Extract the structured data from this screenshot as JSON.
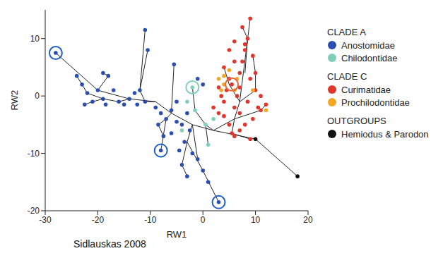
{
  "chart_data": {
    "type": "scatter",
    "caption": "Sidlauskas 2008",
    "x_label": "RW1",
    "y_label": "RW2",
    "xlim": [
      -30,
      20
    ],
    "xticks": [
      -30,
      -20,
      -10,
      0,
      10,
      20
    ],
    "ylim": [
      -20,
      15
    ],
    "yticks": [
      -20,
      -10,
      0,
      10
    ],
    "grid": false,
    "legend": "right",
    "series": [
      {
        "name": "Anostomidae",
        "group": "CLADE A",
        "color": "#2b4fb0",
        "points": [
          [
            -28,
            7.5
          ],
          [
            -24,
            3.5
          ],
          [
            -23,
            2
          ],
          [
            -22,
            0.5
          ],
          [
            -21,
            -1
          ],
          [
            -22.5,
            -1.5
          ],
          [
            -20,
            1
          ],
          [
            -19,
            -0.5
          ],
          [
            -18.5,
            -1.5
          ],
          [
            -18,
            3.5
          ],
          [
            -19,
            4
          ],
          [
            -17,
            1
          ],
          [
            -16,
            -1
          ],
          [
            -15,
            -1.5
          ],
          [
            -14,
            -0.5
          ],
          [
            -13,
            0.5
          ],
          [
            -12,
            1
          ],
          [
            -12.5,
            -1.5
          ],
          [
            -11,
            -1
          ],
          [
            -11,
            11.5
          ],
          [
            -10.5,
            8
          ],
          [
            -9,
            -2
          ],
          [
            -8,
            -3
          ],
          [
            -7,
            -4
          ],
          [
            -8.5,
            -5
          ],
          [
            -7.5,
            -7
          ],
          [
            -8,
            -9.5
          ],
          [
            -6,
            -2.5
          ],
          [
            -5,
            -4.5
          ],
          [
            -4,
            -5
          ],
          [
            -5.5,
            5.5
          ],
          [
            -5,
            -1
          ],
          [
            -3,
            -3
          ],
          [
            -2.5,
            -6
          ],
          [
            -3.5,
            -8
          ],
          [
            -4,
            -12
          ],
          [
            -3,
            -14
          ],
          [
            -2,
            -10
          ],
          [
            -1,
            -11
          ],
          [
            0,
            -13
          ],
          [
            1,
            -15
          ],
          [
            3,
            -18.5
          ],
          [
            -1,
            3
          ],
          [
            0,
            2
          ],
          [
            -6,
            -6.5
          ],
          [
            -4.5,
            -9.5
          ]
        ]
      },
      {
        "name": "Chilodontidae",
        "group": "CLADE A",
        "color": "#7fd0b8",
        "points": [
          [
            -2,
            1.5
          ],
          [
            -3,
            -1
          ],
          [
            -4,
            -6
          ],
          [
            0.5,
            -5
          ],
          [
            1,
            -8.5
          ],
          [
            2,
            -4
          ],
          [
            -1.5,
            -2.5
          ]
        ]
      },
      {
        "name": "Curimatidae",
        "group": "CLADE C",
        "color": "#e0362c",
        "points": [
          [
            3,
            -3
          ],
          [
            4,
            -1
          ],
          [
            4.5,
            1
          ],
          [
            5,
            3
          ],
          [
            5.5,
            2
          ],
          [
            6,
            -2
          ],
          [
            6.5,
            0
          ],
          [
            7,
            4
          ],
          [
            7.5,
            6
          ],
          [
            8,
            8
          ],
          [
            8.5,
            10
          ],
          [
            9,
            13.5
          ],
          [
            7.5,
            12
          ],
          [
            8,
            9
          ],
          [
            9,
            3
          ],
          [
            10,
            1
          ],
          [
            11,
            0
          ],
          [
            10.5,
            -2
          ],
          [
            9.5,
            -4
          ],
          [
            8,
            -5
          ],
          [
            7,
            -6
          ],
          [
            6,
            -7
          ],
          [
            5,
            -5
          ],
          [
            4,
            -3.5
          ],
          [
            3.5,
            0
          ],
          [
            6,
            6
          ],
          [
            5,
            8
          ],
          [
            8.5,
            -1
          ],
          [
            10,
            4
          ],
          [
            9.5,
            7
          ],
          [
            7,
            1.5
          ],
          [
            6,
            9.5
          ],
          [
            4,
            5
          ],
          [
            2,
            -2
          ],
          [
            3,
            1.5
          ],
          [
            5.5,
            -6.5
          ],
          [
            7,
            -3
          ],
          [
            9,
            -7.5
          ],
          [
            11,
            -2.5
          ],
          [
            12,
            -1.5
          ]
        ]
      },
      {
        "name": "Prochilodontidae",
        "group": "CLADE C",
        "color": "#f5a623",
        "points": [
          [
            4,
            3.5
          ],
          [
            5,
            4.5
          ],
          [
            3.5,
            1
          ],
          [
            6,
            1
          ],
          [
            12,
            -2.5
          ],
          [
            6.5,
            3
          ],
          [
            9.5,
            1
          ],
          [
            4,
            2
          ],
          [
            3,
            3
          ]
        ]
      },
      {
        "name": "Hemiodus & Parodon",
        "group": "OUTGROUPS",
        "color": "#111111",
        "points": [
          [
            18,
            -14
          ],
          [
            10,
            -7.5
          ]
        ]
      }
    ],
    "branches": [
      [
        [
          18,
          -14
        ],
        [
          10,
          -7.5
        ],
        [
          2,
          -6
        ],
        [
          -2,
          -5
        ],
        [
          -6,
          -3
        ],
        [
          -9,
          -1
        ],
        [
          -14,
          -0.5
        ],
        [
          -20,
          1
        ],
        [
          -28,
          7.5
        ]
      ],
      [
        [
          -14,
          -0.5
        ],
        [
          -16,
          -1
        ],
        [
          -19,
          -0.5
        ],
        [
          -22,
          0.5
        ],
        [
          -24,
          3.5
        ]
      ],
      [
        [
          -19,
          -0.5
        ],
        [
          -21,
          -1
        ],
        [
          -22.5,
          -1.5
        ]
      ],
      [
        [
          -20,
          1
        ],
        [
          -18,
          3.5
        ],
        [
          -19,
          4
        ]
      ],
      [
        [
          -9,
          -1
        ],
        [
          -11,
          -1
        ],
        [
          -12,
          1
        ],
        [
          -11,
          11.5
        ]
      ],
      [
        [
          -12,
          1
        ],
        [
          -10.5,
          8
        ]
      ],
      [
        [
          -6,
          -3
        ],
        [
          -7,
          -4
        ],
        [
          -8,
          -9.5
        ]
      ],
      [
        [
          -7,
          -4
        ],
        [
          -8.5,
          -5
        ],
        [
          -7.5,
          -7
        ]
      ],
      [
        [
          -6,
          -3
        ],
        [
          -5.5,
          5.5
        ]
      ],
      [
        [
          -2,
          -5
        ],
        [
          -3,
          -8
        ],
        [
          -4,
          -12
        ],
        [
          -3,
          -14
        ]
      ],
      [
        [
          -3,
          -8
        ],
        [
          0,
          -13
        ],
        [
          3,
          -18.5
        ]
      ],
      [
        [
          -2,
          -5
        ],
        [
          -1,
          -11
        ]
      ],
      [
        [
          2,
          -6
        ],
        [
          0.5,
          -5
        ],
        [
          -1.5,
          -2.5
        ],
        [
          -2,
          1.5
        ]
      ],
      [
        [
          0.5,
          -5
        ],
        [
          1,
          -8.5
        ]
      ],
      [
        [
          2,
          -6
        ],
        [
          6,
          -4
        ],
        [
          7,
          -1
        ],
        [
          9,
          13.5
        ]
      ],
      [
        [
          7,
          -1
        ],
        [
          5,
          2
        ],
        [
          4,
          5
        ]
      ],
      [
        [
          5,
          2
        ],
        [
          5.5,
          2
        ]
      ],
      [
        [
          6,
          -4
        ],
        [
          11,
          -2.5
        ],
        [
          12,
          -1.5
        ]
      ],
      [
        [
          7,
          -1
        ],
        [
          10,
          1
        ],
        [
          10,
          4
        ],
        [
          9.5,
          7
        ]
      ],
      [
        [
          6,
          -4
        ],
        [
          5.5,
          -6.5
        ],
        [
          9,
          -7.5
        ]
      ],
      [
        [
          8,
          4
        ],
        [
          8.5,
          10
        ],
        [
          7.5,
          12
        ]
      ]
    ],
    "highlights": [
      {
        "x": -28,
        "y": 7.5,
        "color": "#1f5fc4"
      },
      {
        "x": -8,
        "y": -9.5,
        "color": "#1f5fc4"
      },
      {
        "x": 3,
        "y": -18.5,
        "color": "#1f5fc4"
      },
      {
        "x": -2,
        "y": 1.5,
        "color": "#7fd0b8"
      },
      {
        "x": 5.5,
        "y": 2,
        "color": "#e8643a"
      }
    ]
  }
}
